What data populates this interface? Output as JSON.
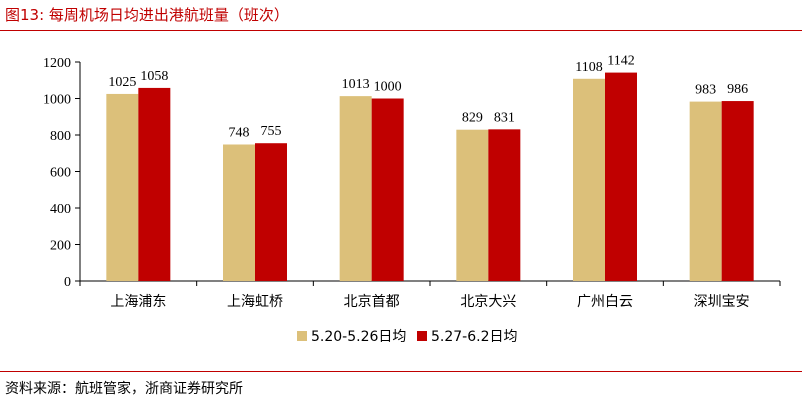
{
  "figure": {
    "title": "图13:  每周机场日均进出港航班量（班次）",
    "source": "资料来源：航班管家，浙商证券研究所"
  },
  "chart_data": {
    "type": "bar",
    "categories": [
      "上海浦东",
      "上海虹桥",
      "北京首都",
      "北京大兴",
      "广州白云",
      "深圳宝安"
    ],
    "series": [
      {
        "name": "5.20-5.26日均",
        "values": [
          1025,
          748,
          1013,
          829,
          1108,
          983
        ],
        "color": "#dcc07a"
      },
      {
        "name": "5.27-6.2日均",
        "values": [
          1058,
          755,
          1000,
          831,
          1142,
          986
        ],
        "color": "#c00000"
      }
    ],
    "ylim": [
      0,
      1200
    ],
    "yticks": [
      0,
      200,
      400,
      600,
      800,
      1000,
      1200
    ],
    "data_labels": true,
    "legend": "bottom-center",
    "grid": false
  }
}
